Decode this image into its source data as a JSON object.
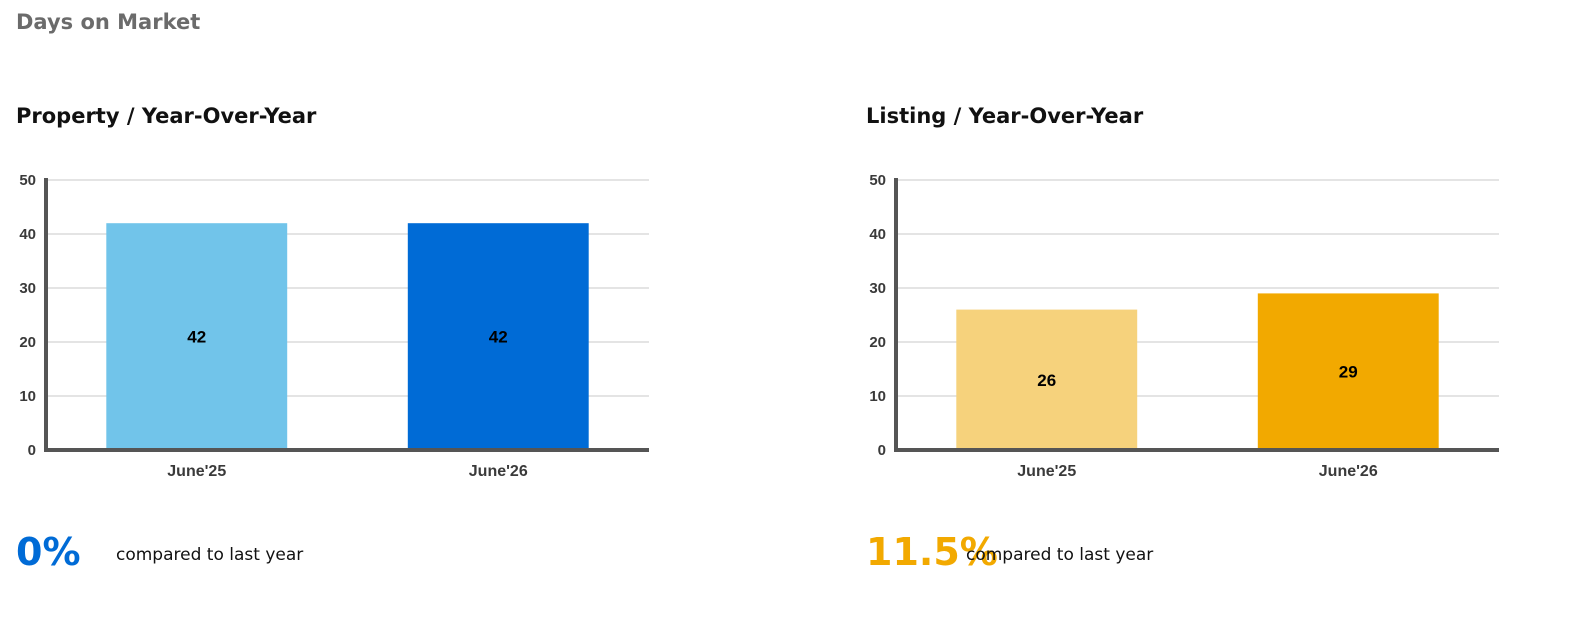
{
  "section_title": "Days on Market",
  "panels": [
    {
      "title": "Property / Year-Over-Year",
      "change_value": "0%",
      "change_text": "compared to last year",
      "accent": "#006bd6"
    },
    {
      "title": "Listing / Year-Over-Year",
      "change_value": "11.5%",
      "change_text": "compared to last year",
      "accent": "#f2a900"
    }
  ],
  "chart_data": [
    {
      "type": "bar",
      "categories": [
        "June'25",
        "June'26"
      ],
      "values": [
        42,
        42
      ],
      "colors": [
        "#71c4ea",
        "#006bd6"
      ],
      "title": "Property / Year-Over-Year",
      "xlabel": "",
      "ylabel": "",
      "ylim": [
        0,
        50
      ],
      "yticks": [
        0,
        10,
        20,
        30,
        40,
        50
      ],
      "grid": true,
      "data_labels": true
    },
    {
      "type": "bar",
      "categories": [
        "June'25",
        "June'26"
      ],
      "values": [
        26,
        29
      ],
      "colors": [
        "#f6d27c",
        "#f2a900"
      ],
      "title": "Listing / Year-Over-Year",
      "xlabel": "",
      "ylabel": "",
      "ylim": [
        0,
        50
      ],
      "yticks": [
        0,
        10,
        20,
        30,
        40,
        50
      ],
      "grid": true,
      "data_labels": true
    }
  ]
}
